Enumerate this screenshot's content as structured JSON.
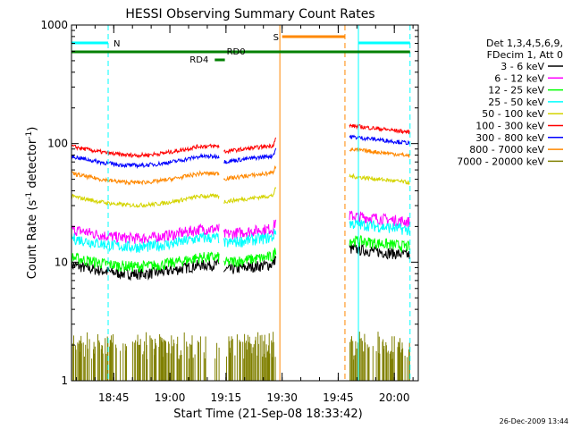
{
  "chart_data": {
    "type": "line",
    "title": "HESSI Observing Summary Count Rates",
    "xlabel": "Start Time (21-Sep-08 18:33:42)",
    "ylabel_main": "Count Rate (s",
    "ylabel_sup1": "-1",
    "ylabel_mid": " detector",
    "ylabel_sup2": "-1",
    "ylabel_end": ")",
    "yscale": "log",
    "ylim": [
      1,
      1000
    ],
    "xlim": [
      18.5617,
      20.1067
    ],
    "y_ticks": [
      "1",
      "10",
      "100",
      "1000"
    ],
    "x_ticks": [
      {
        "h": 18.75,
        "label": "18:45"
      },
      {
        "h": 19.0,
        "label": "19:00"
      },
      {
        "h": 19.25,
        "label": "19:15"
      },
      {
        "h": 19.5,
        "label": "19:30"
      },
      {
        "h": 19.75,
        "label": "19:45"
      },
      {
        "h": 20.0,
        "label": "20:00"
      }
    ],
    "header": [
      "Det 1,3,4,5,6,9,",
      "FDecim 1, Att 0"
    ],
    "series": [
      {
        "name": "3 - 6 keV",
        "color": "#000000",
        "base": 9.5,
        "postBase": 11
      },
      {
        "name": "6 - 12 keV",
        "color": "#ff00ff",
        "base": 19,
        "postBase": 21
      },
      {
        "name": "12 - 25 keV",
        "color": "#00ff00",
        "base": 11,
        "postBase": 13
      },
      {
        "name": "25 - 50 keV",
        "color": "#00ffff",
        "base": 16,
        "postBase": 18
      },
      {
        "name": "50 - 100 keV",
        "color": "#d4d400",
        "base": 36,
        "postBase": 45
      },
      {
        "name": "100 - 300 keV",
        "color": "#ff0000",
        "base": 95,
        "postBase": 120
      },
      {
        "name": "300 - 800 keV",
        "color": "#0000ff",
        "base": 78,
        "postBase": 97
      },
      {
        "name": "800 - 7000 keV",
        "color": "#ff8800",
        "base": 56,
        "postBase": 76
      },
      {
        "name": "7000 - 20000 keV",
        "color": "#808000"
      }
    ],
    "segments": [
      {
        "h0": 18.5617,
        "h1": 19.22,
        "shape": "dip"
      },
      {
        "h0": 19.24,
        "h1": 19.475,
        "shape": "rise"
      },
      {
        "h0": 19.8,
        "h1": 20.07,
        "shape": "decay"
      }
    ],
    "flags": {
      "N": {
        "label": "N",
        "h0": 18.5617,
        "h1": 18.725,
        "h2": 19.84,
        "h3": 20.07,
        "color": "#00ffff"
      },
      "S": {
        "label": "S",
        "h0": 19.5,
        "h1": 19.78,
        "color": "#ff8800"
      },
      "RD0": {
        "label": "RD0",
        "h0": 18.5617,
        "h1": 20.07,
        "color": "#008000"
      },
      "RD4": {
        "label": "RD4",
        "h0": 19.2,
        "h1": 19.245,
        "color": "#008000"
      }
    },
    "vlines": [
      {
        "h": 18.725,
        "color": "#00ffff",
        "dash": true
      },
      {
        "h": 19.49,
        "color": "#ff8800",
        "dash": false
      },
      {
        "h": 19.78,
        "color": "#ff8800",
        "dash": true
      },
      {
        "h": 19.84,
        "color": "#00ffff",
        "dash": false
      },
      {
        "h": 20.07,
        "color": "#00ffff",
        "dash": true
      }
    ],
    "grid": false,
    "legend_position": "right"
  },
  "footer": {
    "date": "26-Dec-2009 13:44"
  }
}
